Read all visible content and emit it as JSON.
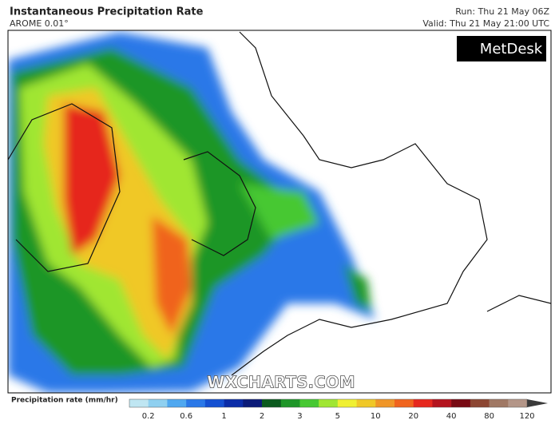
{
  "header": {
    "title": "Instantaneous Precipitation Rate",
    "subtitle": "AROME 0.01°",
    "run": "Run: Thu 21 May 06Z",
    "valid": "Valid: Thu 21 May 21:00 UTC"
  },
  "logo": "MetDesk",
  "watermark": "WXCHARTS.COM",
  "legend": {
    "label": "Precipitation rate (mm/hr)",
    "colors": [
      "#bfe6f2",
      "#8fd0f0",
      "#4fa8f0",
      "#2a78e8",
      "#1450d2",
      "#0a2ca8",
      "#0a1a78",
      "#0a5a1e",
      "#1e9628",
      "#46c832",
      "#a0e632",
      "#f0f032",
      "#f0c828",
      "#f09628",
      "#f0641e",
      "#e6281e",
      "#b4141e",
      "#780a14",
      "#8c4632",
      "#a07864",
      "#b49688"
    ],
    "ticks": [
      "0.2",
      "0.6",
      "1",
      "2",
      "3",
      "5",
      "10",
      "20",
      "40",
      "80",
      "120"
    ]
  }
}
